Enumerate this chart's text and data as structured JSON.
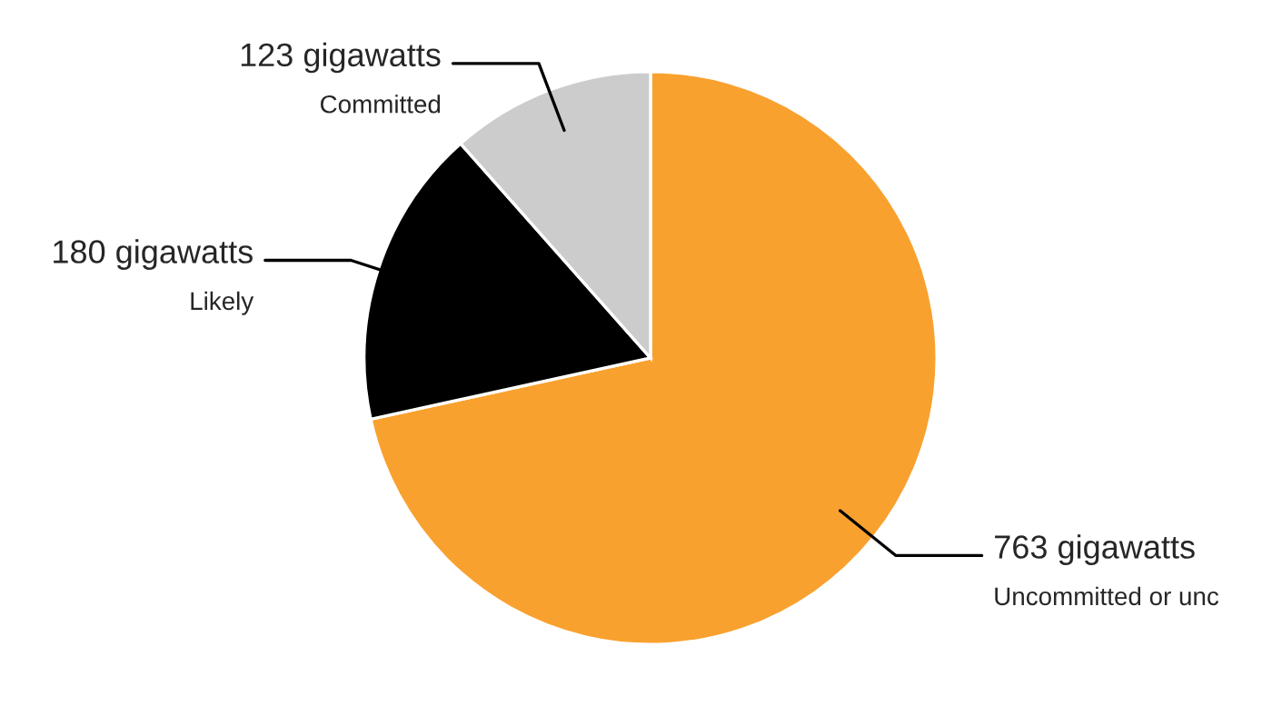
{
  "chart_data": {
    "type": "pie",
    "categories": [
      "Uncommitted or unc",
      "Likely",
      "Committed"
    ],
    "values": [
      763,
      180,
      123
    ],
    "value_labels": [
      "763 gigawatts",
      "180 gigawatts",
      "123 gigawatts"
    ],
    "colors": [
      "#f9a12e",
      "#000000",
      "#cccccc"
    ]
  }
}
